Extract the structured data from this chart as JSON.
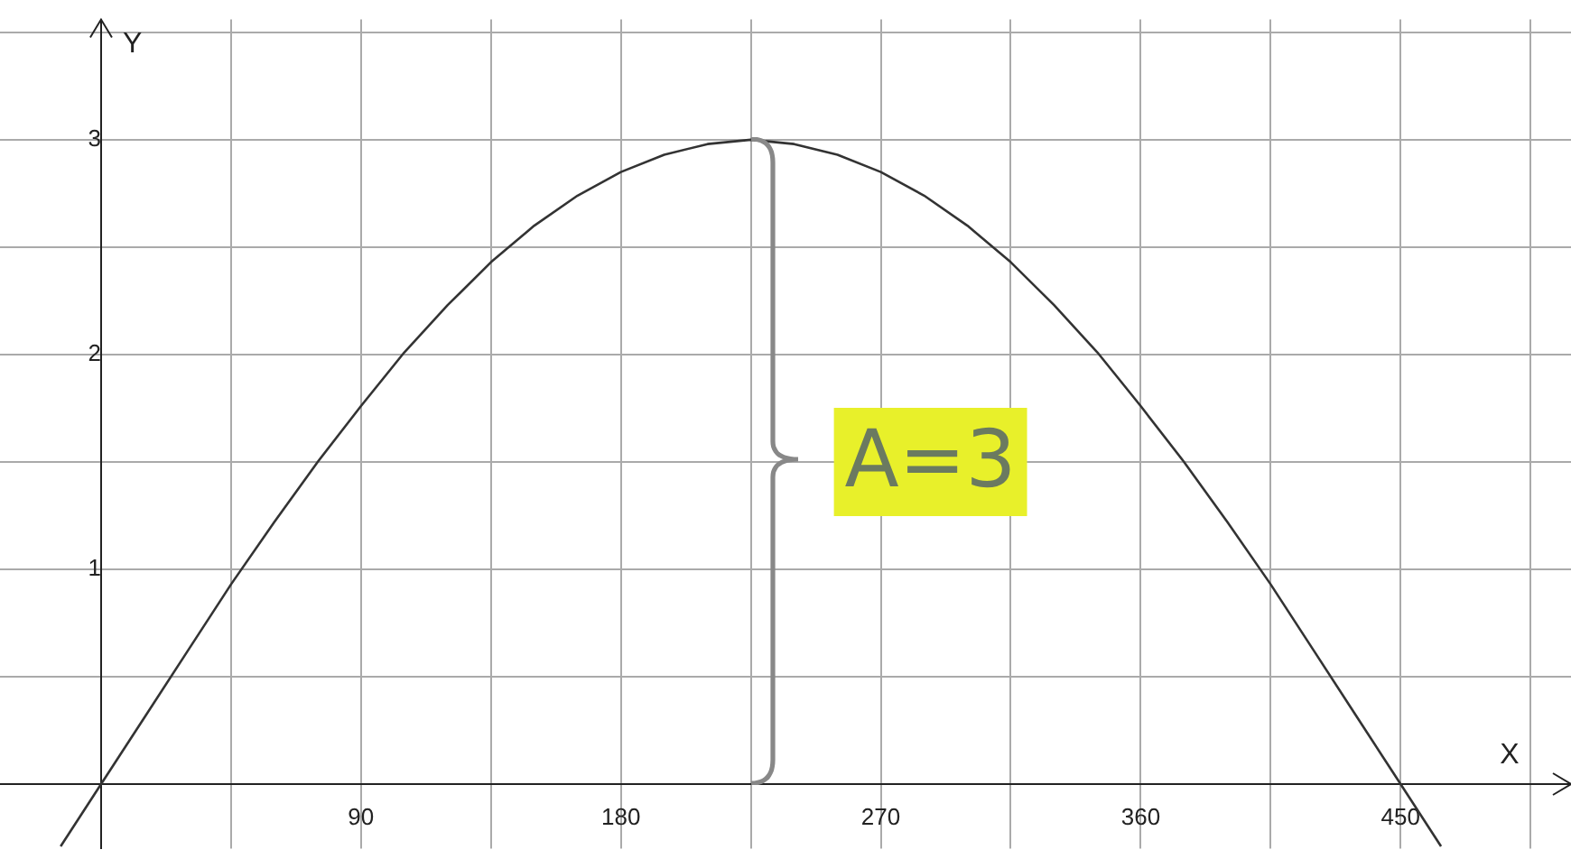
{
  "chart_data": {
    "type": "line",
    "xlabel": "X",
    "ylabel": "Y",
    "color": "#333333",
    "x": [
      -14,
      0,
      15,
      30,
      45,
      60,
      75,
      90,
      105,
      120,
      135,
      150,
      165,
      180,
      195,
      210,
      225,
      240,
      255,
      270,
      285,
      300,
      315,
      330,
      345,
      360,
      375,
      390,
      405,
      420,
      435,
      450,
      464
    ],
    "values": [
      -0.29,
      0,
      0.31,
      0.62,
      0.93,
      1.22,
      1.5,
      1.76,
      2.01,
      2.23,
      2.43,
      2.6,
      2.74,
      2.85,
      2.93,
      2.98,
      3,
      2.98,
      2.93,
      2.85,
      2.74,
      2.6,
      2.43,
      2.23,
      2.01,
      1.76,
      1.5,
      1.22,
      0.93,
      0.62,
      0.31,
      0,
      -0.29
    ],
    "xlim": [
      -35,
      509
    ],
    "ylim": [
      -0.3,
      3.56
    ],
    "xticks": [
      {
        "value": 45,
        "label": null
      },
      90,
      {
        "value": 135,
        "label": null
      },
      180,
      {
        "value": 225,
        "label": null
      },
      270,
      {
        "value": 315,
        "label": null
      },
      360,
      {
        "value": 405,
        "label": null
      },
      450,
      {
        "value": 495,
        "label": null
      }
    ],
    "yticks": [
      {
        "value": 0.5,
        "label": null
      },
      1,
      {
        "value": 1.5,
        "label": null
      },
      2,
      {
        "value": 2.5,
        "label": null
      },
      3,
      {
        "value": 3.5,
        "label": null
      }
    ],
    "grid": true,
    "marker": "none",
    "line_style": "solid",
    "legend": false,
    "annotations": [
      "A=3"
    ]
  }
}
